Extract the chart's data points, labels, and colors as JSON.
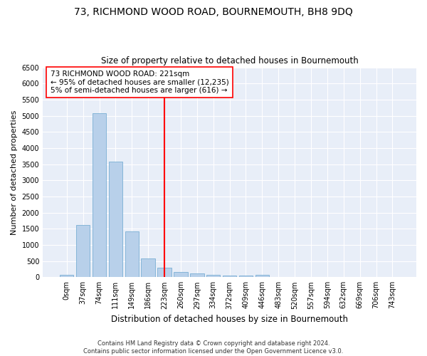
{
  "title": "73, RICHMOND WOOD ROAD, BOURNEMOUTH, BH8 9DQ",
  "subtitle": "Size of property relative to detached houses in Bournemouth",
  "xlabel": "Distribution of detached houses by size in Bournemouth",
  "ylabel": "Number of detached properties",
  "footer_line1": "Contains HM Land Registry data © Crown copyright and database right 2024.",
  "footer_line2": "Contains public sector information licensed under the Open Government Licence v3.0.",
  "categories": [
    "0sqm",
    "37sqm",
    "74sqm",
    "111sqm",
    "149sqm",
    "186sqm",
    "223sqm",
    "260sqm",
    "297sqm",
    "334sqm",
    "372sqm",
    "409sqm",
    "446sqm",
    "483sqm",
    "520sqm",
    "557sqm",
    "594sqm",
    "632sqm",
    "669sqm",
    "706sqm",
    "743sqm"
  ],
  "values": [
    75,
    1620,
    5080,
    3580,
    1410,
    590,
    290,
    155,
    115,
    80,
    60,
    40,
    75,
    0,
    0,
    0,
    0,
    0,
    0,
    0,
    0
  ],
  "bar_color": "#b8d0ea",
  "bar_edge_color": "#7aafd4",
  "annotation_line_color": "red",
  "annotation_text_line1": "73 RICHMOND WOOD ROAD: 221sqm",
  "annotation_text_line2": "← 95% of detached houses are smaller (12,235)",
  "annotation_text_line3": "5% of semi-detached houses are larger (616) →",
  "ylim": [
    0,
    6500
  ],
  "yticks": [
    0,
    500,
    1000,
    1500,
    2000,
    2500,
    3000,
    3500,
    4000,
    4500,
    5000,
    5500,
    6000,
    6500
  ],
  "bg_color": "#e8eef8",
  "title_fontsize": 10,
  "subtitle_fontsize": 8.5,
  "ylabel_fontsize": 8,
  "xlabel_fontsize": 8.5,
  "tick_fontsize": 7,
  "annotation_fontsize": 7.5,
  "footer_fontsize": 6
}
